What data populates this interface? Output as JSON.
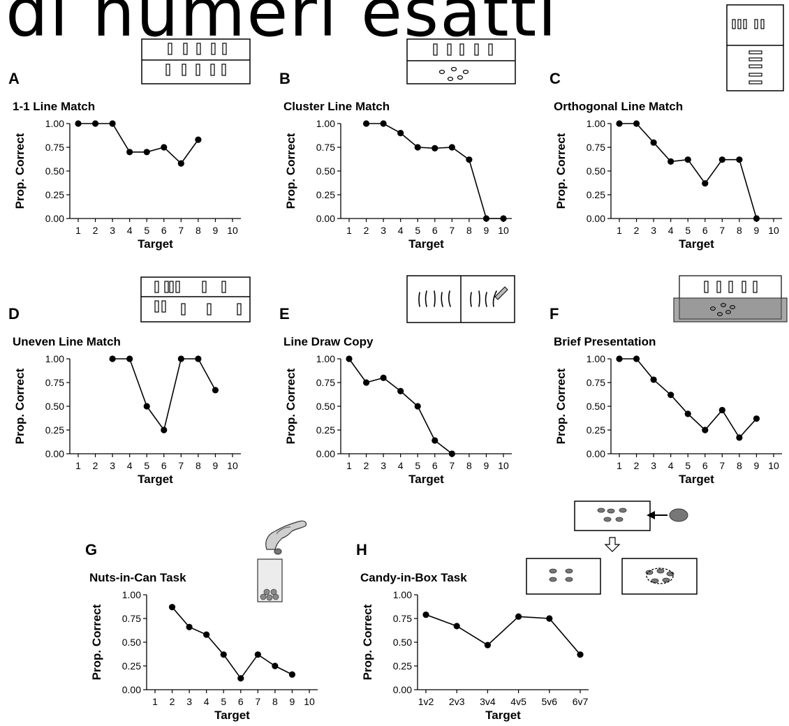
{
  "page": {
    "heading": "di numeri esatti"
  },
  "chart_data": [
    {
      "id": "A",
      "letter": "A",
      "type": "line",
      "title": "1-1 Line Match",
      "xlabel": "Target",
      "ylabel": "Prop. Correct",
      "categories": [
        "1",
        "2",
        "3",
        "4",
        "5",
        "6",
        "7",
        "8",
        "9",
        "10"
      ],
      "yticks": [
        "0.00",
        "0.25",
        "0.50",
        "0.75",
        "1.00"
      ],
      "ylim": [
        0,
        1
      ],
      "values": [
        1.0,
        1.0,
        1.0,
        0.7,
        0.7,
        0.75,
        0.58,
        0.83,
        null,
        null
      ]
    },
    {
      "id": "B",
      "letter": "B",
      "type": "line",
      "title": "Cluster Line Match",
      "xlabel": "Target",
      "ylabel": "Prop. Correct",
      "categories": [
        "1",
        "2",
        "3",
        "4",
        "5",
        "6",
        "7",
        "8",
        "9",
        "10"
      ],
      "yticks": [
        "0.00",
        "0.25",
        "0.50",
        "0.75",
        "1.00"
      ],
      "ylim": [
        0,
        1
      ],
      "values": [
        null,
        1.0,
        1.0,
        0.9,
        0.75,
        0.74,
        0.75,
        0.62,
        0.0,
        0.0
      ]
    },
    {
      "id": "C",
      "letter": "C",
      "type": "line",
      "title": "Orthogonal Line Match",
      "xlabel": "Target",
      "ylabel": "Prop. Correct",
      "categories": [
        "1",
        "2",
        "3",
        "4",
        "5",
        "6",
        "7",
        "8",
        "9",
        "10"
      ],
      "yticks": [
        "0.00",
        "0.25",
        "0.50",
        "0.75",
        "1.00"
      ],
      "ylim": [
        0,
        1
      ],
      "values": [
        1.0,
        1.0,
        0.8,
        0.6,
        0.62,
        0.37,
        0.62,
        0.62,
        0.0,
        null
      ]
    },
    {
      "id": "D",
      "letter": "D",
      "type": "line",
      "title": "Uneven Line Match",
      "xlabel": "Target",
      "ylabel": "Prop. Correct",
      "categories": [
        "1",
        "2",
        "3",
        "4",
        "5",
        "6",
        "7",
        "8",
        "9",
        "10"
      ],
      "yticks": [
        "0.00",
        "0.25",
        "0.50",
        "0.75",
        "1.00"
      ],
      "ylim": [
        0,
        1
      ],
      "values": [
        null,
        null,
        1.0,
        1.0,
        0.5,
        0.25,
        1.0,
        1.0,
        0.67,
        null
      ]
    },
    {
      "id": "E",
      "letter": "E",
      "type": "line",
      "title": "Line Draw Copy",
      "xlabel": "Target",
      "ylabel": "Prop. Correct",
      "categories": [
        "1",
        "2",
        "3",
        "4",
        "5",
        "6",
        "7",
        "8",
        "9",
        "10"
      ],
      "yticks": [
        "0.00",
        "0.25",
        "0.50",
        "0.75",
        "1.00"
      ],
      "ylim": [
        0,
        1
      ],
      "values": [
        1.0,
        0.75,
        0.8,
        0.66,
        0.5,
        0.14,
        0.0,
        null,
        null,
        null
      ]
    },
    {
      "id": "F",
      "letter": "F",
      "type": "line",
      "title": "Brief Presentation",
      "xlabel": "Target",
      "ylabel": "Prop. Correct",
      "categories": [
        "1",
        "2",
        "3",
        "4",
        "5",
        "6",
        "7",
        "8",
        "9",
        "10"
      ],
      "yticks": [
        "0.00",
        "0.25",
        "0.50",
        "0.75",
        "1.00"
      ],
      "ylim": [
        0,
        1
      ],
      "values": [
        1.0,
        1.0,
        0.78,
        0.62,
        0.42,
        0.25,
        0.46,
        0.17,
        0.37,
        null
      ]
    },
    {
      "id": "G",
      "letter": "G",
      "type": "line",
      "title": "Nuts-in-Can Task",
      "xlabel": "Target",
      "ylabel": "Prop. Correct",
      "categories": [
        "1",
        "2",
        "3",
        "4",
        "5",
        "6",
        "7",
        "8",
        "9",
        "10"
      ],
      "yticks": [
        "0.00",
        "0.25",
        "0.50",
        "0.75",
        "1.00"
      ],
      "ylim": [
        0,
        1
      ],
      "values": [
        null,
        0.87,
        0.66,
        0.58,
        0.37,
        0.12,
        0.37,
        0.25,
        0.16,
        null
      ]
    },
    {
      "id": "H",
      "letter": "H",
      "type": "line",
      "title": "Candy-in-Box Task",
      "xlabel": "Target",
      "ylabel": "Prop. Correct",
      "categories": [
        "1v2",
        "2v3",
        "3v4",
        "4v5",
        "5v6",
        "6v7"
      ],
      "yticks": [
        "0.00",
        "0.25",
        "0.50",
        "0.75",
        "1.00"
      ],
      "ylim": [
        0,
        1
      ],
      "values": [
        0.79,
        0.67,
        0.47,
        0.77,
        0.75,
        0.37
      ]
    }
  ]
}
